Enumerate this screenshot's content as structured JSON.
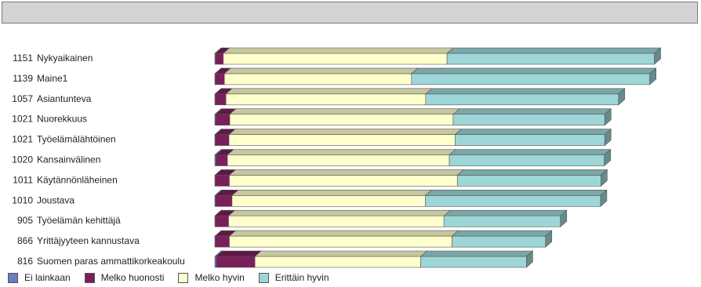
{
  "title_bar": {
    "text": ""
  },
  "colors": {
    "ei_lainkaan": "#6b7bbf",
    "melko_huonosti": "#7b1f5a",
    "melko_hyvin": "#ffffcc",
    "erittain_hyvin": "#9dd6d6"
  },
  "chart_data": {
    "type": "bar",
    "orientation": "horizontal",
    "stacked": true,
    "style": "3d",
    "categories": [
      "1151  Nykyaikainen",
      "1139  Maine1",
      "1057  Asiantunteva",
      "1021  Nuorekkuus",
      "1021  Työelämälähtöinen",
      "1020  Kansainvälinen",
      "1011  Käytännönläheinen",
      "1010  Joustava",
      "905  Työelämän kehittäjä",
      "866  Yrittäjyyteen kannustava",
      "816  Suomen paras ammattikorkeakoulu"
    ],
    "counts": [
      1151,
      1139,
      1057,
      1021,
      1021,
      1020,
      1011,
      1010,
      905,
      866,
      816
    ],
    "labels": [
      "Nykyaikainen",
      "Maine1",
      "Asiantunteva",
      "Nuorekkuus",
      "Työelämälähtöinen",
      "Kansainvälinen",
      "Käytännönläheinen",
      "Joustava",
      "Työelämän kehittäjä",
      "Yrittäjyyteen kannustava",
      "Suomen paras ammattikorkeakoulu"
    ],
    "series": [
      {
        "name": "Ei lainkaan",
        "color_key": "ei_lainkaan",
        "values": [
          2,
          1,
          1,
          2,
          1,
          3,
          1,
          2,
          1,
          1,
          4
        ]
      },
      {
        "name": "Melko huonosti",
        "color_key": "melko_huonosti",
        "values": [
          20,
          24,
          28,
          37,
          36,
          30,
          37,
          43,
          35,
          37,
          101
        ]
      },
      {
        "name": "Melko hyvin",
        "color_key": "melko_hyvin",
        "values": [
          586,
          490,
          523,
          585,
          592,
          581,
          597,
          506,
          564,
          583,
          434
        ]
      },
      {
        "name": "Erittäin hyvin",
        "color_key": "erittain_hyvin",
        "values": [
          543,
          624,
          505,
          397,
          392,
          406,
          376,
          459,
          305,
          245,
          277
        ]
      }
    ],
    "legend_position": "bottom",
    "grid": false
  }
}
